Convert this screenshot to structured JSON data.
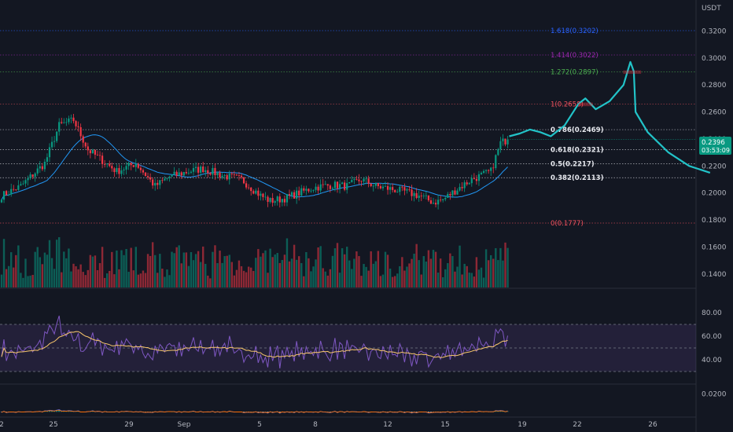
{
  "chart_data": {
    "type": "candlestick",
    "currency_label": "USDT",
    "price_axis": {
      "min": 0.13,
      "max": 0.34,
      "ticks": [
        "0.3200",
        "0.3000",
        "0.2800",
        "0.2600",
        "0.2400",
        "0.2200",
        "0.2000",
        "0.1800",
        "0.1600",
        "0.1400"
      ]
    },
    "current_price": {
      "value": "0.2396",
      "countdown": "03:53:09",
      "price": 0.2396
    },
    "x_axis": {
      "labels": [
        "2",
        "25",
        "29",
        "Sep",
        "5",
        "8",
        "12",
        "15",
        "19",
        "22",
        "26"
      ]
    },
    "fib_levels": [
      {
        "label": "1.618(0.3202)",
        "price": 0.3202,
        "color": "#2962ff"
      },
      {
        "label": "1.414(0.3022)",
        "price": 0.3022,
        "color": "#9c27b0"
      },
      {
        "label": "1.272(0.2897)",
        "price": 0.2897,
        "color": "#4caf50"
      },
      {
        "label": "1(0.2658)",
        "price": 0.2658,
        "color": "#f7525f"
      },
      {
        "label": "0.786(0.2469)",
        "price": 0.2469,
        "color": "#e6e8ee"
      },
      {
        "label": "0.618(0.2321)",
        "price": 0.2321,
        "color": "#e6e8ee"
      },
      {
        "label": "0.5(0.2217)",
        "price": 0.2217,
        "color": "#e6e8ee"
      },
      {
        "label": "0.382(0.2113)",
        "price": 0.2113,
        "color": "#e6e8ee"
      },
      {
        "label": "0(0.1777)",
        "price": 0.1777,
        "color": "#f7525f"
      }
    ],
    "price_waypoints": [
      [
        0,
        0.198
      ],
      [
        8,
        0.205
      ],
      [
        18,
        0.222
      ],
      [
        24,
        0.25
      ],
      [
        30,
        0.254
      ],
      [
        36,
        0.232
      ],
      [
        42,
        0.224
      ],
      [
        48,
        0.216
      ],
      [
        56,
        0.222
      ],
      [
        64,
        0.205
      ],
      [
        70,
        0.212
      ],
      [
        78,
        0.216
      ],
      [
        84,
        0.218
      ],
      [
        92,
        0.213
      ],
      [
        100,
        0.21
      ],
      [
        108,
        0.198
      ],
      [
        112,
        0.194
      ],
      [
        118,
        0.196
      ],
      [
        124,
        0.2
      ],
      [
        130,
        0.204
      ],
      [
        138,
        0.206
      ],
      [
        144,
        0.205
      ],
      [
        150,
        0.21
      ],
      [
        156,
        0.205
      ],
      [
        162,
        0.203
      ],
      [
        168,
        0.201
      ],
      [
        174,
        0.198
      ],
      [
        180,
        0.193
      ],
      [
        184,
        0.195
      ],
      [
        190,
        0.203
      ],
      [
        196,
        0.21
      ],
      [
        204,
        0.216
      ],
      [
        208,
        0.237
      ],
      [
        211,
        0.2396
      ]
    ],
    "volume_axis": {
      "max": 1.0
    },
    "rsi": {
      "ticks": [
        "80.00",
        "60.00",
        "40.00"
      ],
      "range": [
        20,
        100
      ],
      "band": [
        70,
        30
      ],
      "mid": 50
    },
    "macd": {
      "ticks": [
        "0.0200"
      ],
      "range": [
        -0.005,
        0.03
      ]
    },
    "projection": {
      "path": [
        [
          0.242,
          0
        ],
        [
          0.244,
          3
        ],
        [
          0.247,
          6
        ],
        [
          0.245,
          9
        ],
        [
          0.242,
          12
        ],
        [
          0.25,
          16
        ],
        [
          0.266,
          20
        ],
        [
          0.27,
          22
        ],
        [
          0.262,
          25
        ],
        [
          0.268,
          29
        ],
        [
          0.28,
          33
        ],
        [
          0.297,
          35
        ],
        [
          0.29,
          36
        ],
        [
          0.26,
          36.5
        ],
        [
          0.245,
          40
        ],
        [
          0.23,
          46
        ],
        [
          0.22,
          52
        ],
        [
          0.215,
          58
        ]
      ],
      "color": "#22c3c8"
    },
    "target_boxes": [
      {
        "top": 0.2905,
        "bottom": 0.2885,
        "x_from": 33,
        "x_to": 38
      },
      {
        "top": 0.2668,
        "bottom": 0.2645,
        "x_from": 20,
        "x_to": 24
      }
    ]
  }
}
